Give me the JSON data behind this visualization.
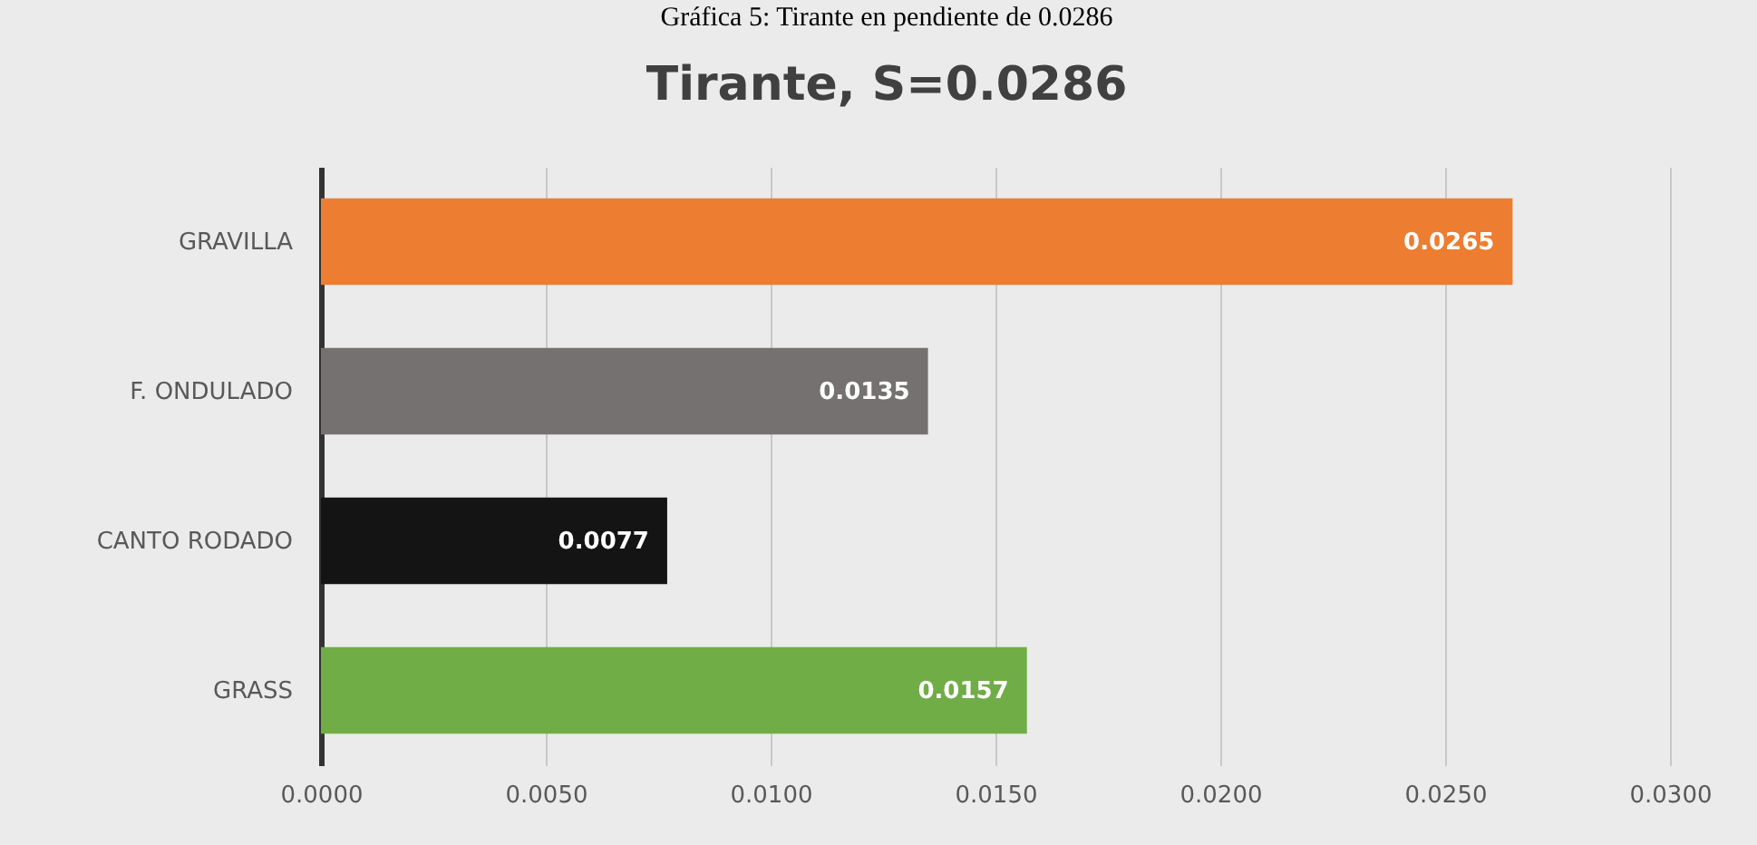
{
  "chart_data": {
    "type": "bar",
    "orientation": "horizontal",
    "title": "Tirante, S=0.0286",
    "annotations": [
      "Gráfica 5: Tirante en pendiente de 0.0286"
    ],
    "categories": [
      "GRAVILLA",
      "F. ONDULADO",
      "CANTO RODADO",
      "GRASS"
    ],
    "values": [
      0.0265,
      0.0135,
      0.0077,
      0.0157
    ],
    "colors": [
      "#ed7d31",
      "#767171",
      "#141414",
      "#70ad47"
    ],
    "xlim": [
      0,
      0.03
    ],
    "xticks": [
      {
        "value": 0,
        "label": "0.0000"
      },
      {
        "value": 0.005,
        "label": "0.0050"
      },
      {
        "value": 0.01,
        "label": "0.0100"
      },
      {
        "value": 0.015,
        "label": "0.0150"
      },
      {
        "value": 0.02,
        "label": "0.0200"
      },
      {
        "value": 0.025,
        "label": "0.0250"
      },
      {
        "value": 0.03,
        "label": "0.0300"
      }
    ],
    "grid": "x",
    "data_labels": true
  }
}
